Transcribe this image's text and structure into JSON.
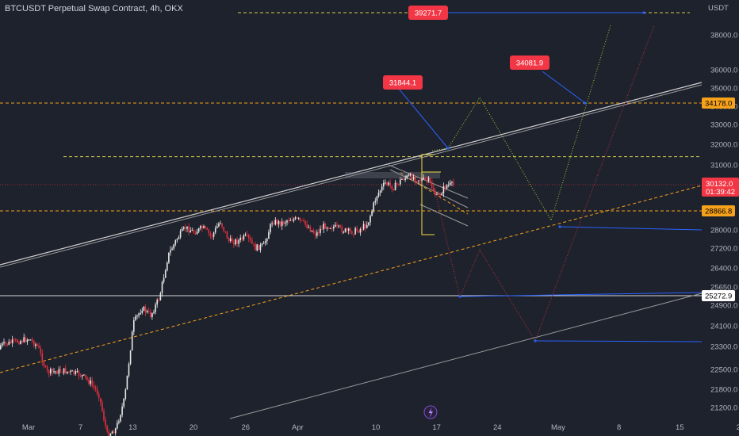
{
  "header": {
    "title": "BTCUSDT Perpetual Swap Contract, 4h, OKX"
  },
  "colors": {
    "background": "#1e222d",
    "up": "#e8e8e8",
    "down": "#e0303c",
    "axis_text": "#b2b5be",
    "orange": "#f7a21b",
    "yellow": "#f0e040",
    "blue": "#2962ff",
    "red_marker": "#f23645",
    "level_yellow": "#d4c94a"
  },
  "chart_data": {
    "type": "line",
    "title": "BTCUSDT Perpetual Swap Contract, 4h, OKX",
    "currency": "USDT",
    "y_ticks": [
      38000,
      36000,
      35000,
      34000,
      33000,
      32000,
      31000,
      28000,
      27200,
      26400,
      25650,
      24900,
      24100,
      23300,
      22500,
      21800,
      21200
    ],
    "y_tick_labels": [
      "38000.0",
      "36000.0",
      "35000.0",
      "34000.0",
      "33000.0",
      "32000.0",
      "31000.0",
      "28000.0",
      "27200.0",
      "26400.0",
      "25650.0",
      "24900.0",
      "24100.0",
      "23300.0",
      "22500.0",
      "21800.0",
      "21200.0"
    ],
    "x_ticks": [
      {
        "label": "Mar",
        "date": "2023-03-01"
      },
      {
        "label": "7",
        "date": "2023-03-07"
      },
      {
        "label": "13",
        "date": "2023-03-13"
      },
      {
        "label": "20",
        "date": "2023-03-20"
      },
      {
        "label": "26",
        "date": "2023-03-26"
      },
      {
        "label": "Apr",
        "date": "2023-04-01"
      },
      {
        "label": "10",
        "date": "2023-04-10"
      },
      {
        "label": "17",
        "date": "2023-04-17"
      },
      {
        "label": "24",
        "date": "2023-04-24"
      },
      {
        "label": "May",
        "date": "2023-05-01"
      },
      {
        "label": "8",
        "date": "2023-05-08"
      },
      {
        "label": "15",
        "date": "2023-05-15"
      },
      {
        "label": "22",
        "date": "2023-05-22"
      }
    ],
    "current_price": {
      "value": 30132.0,
      "label": "30132.0",
      "countdown": "01:39:42"
    },
    "price_labels": [
      {
        "value": 34178.0,
        "label": "34178.0",
        "color": "#f7a21b"
      },
      {
        "value": 28866.8,
        "label": "28866.8",
        "color": "#f7a21b"
      },
      {
        "value": 25272.9,
        "label": "25272.9",
        "color": "#ffffff"
      }
    ],
    "target_markers": [
      {
        "label": "39271.7",
        "value": 39271.7
      },
      {
        "label": "31844.1",
        "value": 31844.1
      },
      {
        "label": "34081.9",
        "value": 34081.9
      }
    ],
    "price_path": [
      {
        "date": "2023-02-24",
        "price": 23200
      },
      {
        "date": "2023-02-27",
        "price": 23450
      },
      {
        "date": "2023-03-01",
        "price": 23600
      },
      {
        "date": "2023-03-02",
        "price": 23300
      },
      {
        "date": "2023-03-03",
        "price": 22400
      },
      {
        "date": "2023-03-05",
        "price": 22450
      },
      {
        "date": "2023-03-07",
        "price": 22300
      },
      {
        "date": "2023-03-08",
        "price": 22050
      },
      {
        "date": "2023-03-09",
        "price": 21650
      },
      {
        "date": "2023-03-10",
        "price": 20300
      },
      {
        "date": "2023-03-11",
        "price": 20500
      },
      {
        "date": "2023-03-12",
        "price": 21500
      },
      {
        "date": "2023-03-13",
        "price": 24200
      },
      {
        "date": "2023-03-14",
        "price": 24800
      },
      {
        "date": "2023-03-15",
        "price": 24500
      },
      {
        "date": "2023-03-16",
        "price": 25200
      },
      {
        "date": "2023-03-17",
        "price": 26900
      },
      {
        "date": "2023-03-18",
        "price": 27600
      },
      {
        "date": "2023-03-19",
        "price": 28100
      },
      {
        "date": "2023-03-20",
        "price": 27900
      },
      {
        "date": "2023-03-21",
        "price": 28100
      },
      {
        "date": "2023-03-22",
        "price": 27700
      },
      {
        "date": "2023-03-23",
        "price": 28400
      },
      {
        "date": "2023-03-24",
        "price": 27500
      },
      {
        "date": "2023-03-25",
        "price": 27500
      },
      {
        "date": "2023-03-26",
        "price": 27700
      },
      {
        "date": "2023-03-27",
        "price": 27200
      },
      {
        "date": "2023-03-28",
        "price": 27300
      },
      {
        "date": "2023-03-29",
        "price": 28400
      },
      {
        "date": "2023-03-30",
        "price": 28300
      },
      {
        "date": "2023-03-31",
        "price": 28500
      },
      {
        "date": "2023-04-01",
        "price": 28450
      },
      {
        "date": "2023-04-02",
        "price": 28200
      },
      {
        "date": "2023-04-03",
        "price": 27800
      },
      {
        "date": "2023-04-04",
        "price": 28200
      },
      {
        "date": "2023-04-05",
        "price": 28150
      },
      {
        "date": "2023-04-06",
        "price": 28000
      },
      {
        "date": "2023-04-07",
        "price": 27900
      },
      {
        "date": "2023-04-08",
        "price": 28000
      },
      {
        "date": "2023-04-09",
        "price": 28300
      },
      {
        "date": "2023-04-10",
        "price": 29600
      },
      {
        "date": "2023-04-11",
        "price": 30200
      },
      {
        "date": "2023-04-12",
        "price": 30000
      },
      {
        "date": "2023-04-13",
        "price": 30400
      },
      {
        "date": "2023-04-14",
        "price": 30500
      },
      {
        "date": "2023-04-15",
        "price": 30350
      },
      {
        "date": "2023-04-16",
        "price": 30300
      },
      {
        "date": "2023-04-17",
        "price": 29500
      },
      {
        "date": "2023-04-18",
        "price": 30100
      },
      {
        "date": "2023-04-19",
        "price": 30132
      }
    ]
  },
  "badge": {
    "icon": "lightning-icon"
  }
}
